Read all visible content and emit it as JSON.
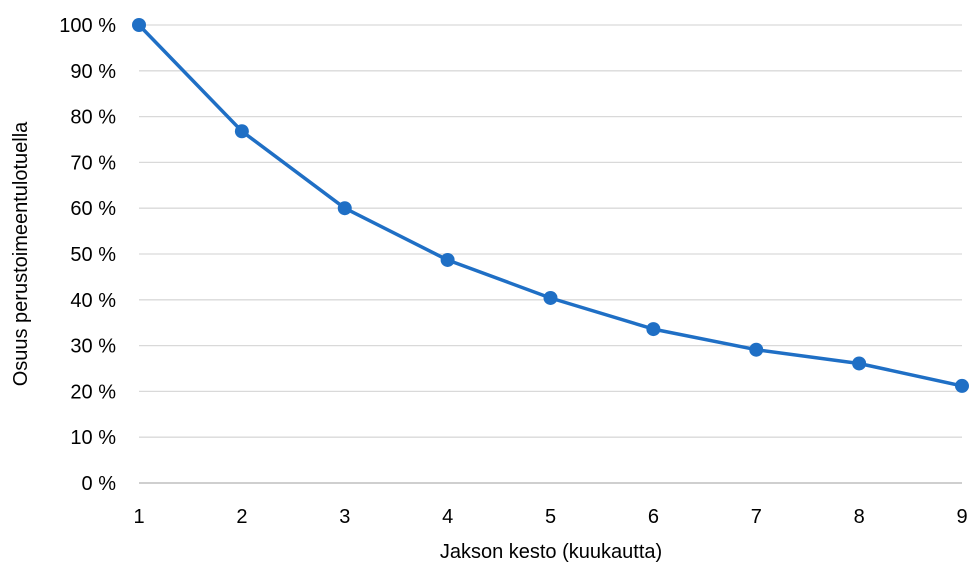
{
  "chart_data": {
    "type": "line",
    "title": "",
    "xlabel": "Jakson kesto (kuukautta)",
    "ylabel": "Osuus perustoimeentulotuella",
    "x": [
      1,
      2,
      3,
      4,
      5,
      6,
      7,
      8,
      9
    ],
    "x_tick_labels": [
      "1",
      "2",
      "3",
      "4",
      "5",
      "6",
      "7",
      "8",
      "9"
    ],
    "xlim": [
      1,
      9
    ],
    "ylim": [
      0,
      100
    ],
    "y_tick_values": [
      0,
      10,
      20,
      30,
      40,
      50,
      60,
      70,
      80,
      90,
      100
    ],
    "y_tick_labels": [
      "0 %",
      "10 %",
      "20 %",
      "30 %",
      "40 %",
      "50 %",
      "60 %",
      "70 %",
      "80 %",
      "90 %",
      "100 %"
    ],
    "y_unit": "%",
    "grid": true,
    "legend": "none",
    "series": [
      {
        "color": "#1f6fc5",
        "values": [
          100,
          76.8,
          60,
          48.7,
          40.4,
          33.6,
          29.1,
          26.1,
          21.2
        ]
      }
    ]
  }
}
